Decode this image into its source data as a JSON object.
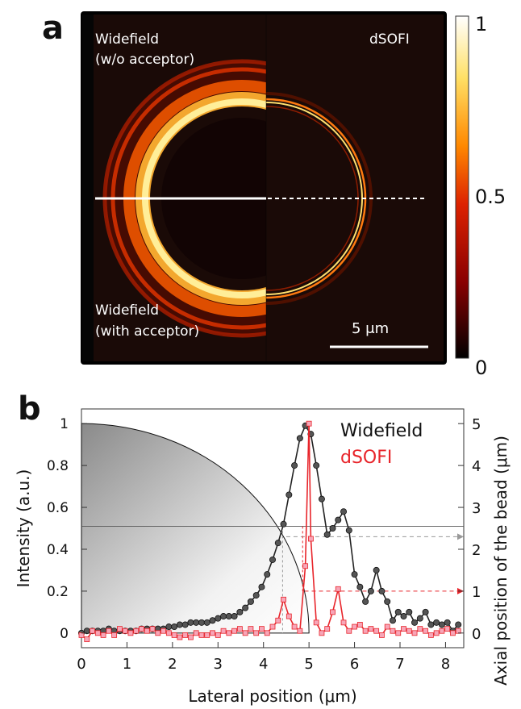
{
  "panel_a": {
    "letter": "a",
    "label_top_left_line1": "Widefield",
    "label_top_left_line2": "(w/o acceptor)",
    "label_top_right": "dSOFI",
    "label_bottom_left_line1": "Widefield",
    "label_bottom_left_line2": "(with acceptor)",
    "scalebar_label": "5 μm",
    "colorbar": {
      "ticks": [
        "1",
        "0.5",
        "0"
      ],
      "colors": [
        "#ffffff",
        "#ffe066",
        "#ff8800",
        "#dd2200",
        "#880000",
        "#000000"
      ]
    }
  },
  "panel_b": {
    "letter": "b",
    "chart_data": {
      "type": "line",
      "xlabel": "Lateral position (μm)",
      "ylabel": "Intensity (a.u.)",
      "y2label": "Axial position of the bead (μm)",
      "xlim": [
        0,
        8.4
      ],
      "ylim": [
        -0.07,
        1.07
      ],
      "y2lim": [
        -0.35,
        5.35
      ],
      "xticks": [
        "0",
        "1",
        "2",
        "3",
        "4",
        "5",
        "6",
        "7",
        "8"
      ],
      "yticks": [
        "0",
        "0.2",
        "0.4",
        "0.6",
        "0.8",
        "1"
      ],
      "y2ticks": [
        "0",
        "1",
        "2",
        "3",
        "4",
        "5"
      ],
      "legend": [
        "Widefield",
        "dSOFI"
      ],
      "legend_position": "top-right",
      "series": [
        {
          "name": "Widefield",
          "color": "#222222",
          "marker": "circle",
          "x": [
            0.0,
            0.12,
            0.24,
            0.36,
            0.48,
            0.6,
            0.72,
            0.84,
            0.96,
            1.08,
            1.2,
            1.32,
            1.44,
            1.56,
            1.68,
            1.8,
            1.92,
            2.04,
            2.16,
            2.28,
            2.4,
            2.52,
            2.64,
            2.76,
            2.88,
            3.0,
            3.12,
            3.24,
            3.36,
            3.48,
            3.6,
            3.72,
            3.84,
            3.96,
            4.08,
            4.2,
            4.32,
            4.44,
            4.56,
            4.68,
            4.8,
            4.92,
            5.04,
            5.16,
            5.28,
            5.4,
            5.52,
            5.64,
            5.76,
            5.88,
            6.0,
            6.12,
            6.24,
            6.36,
            6.48,
            6.6,
            6.72,
            6.84,
            6.96,
            7.08,
            7.2,
            7.32,
            7.44,
            7.56,
            7.68,
            7.8,
            7.92,
            8.04,
            8.16,
            8.28
          ],
          "y": [
            0.0,
            0.01,
            0.01,
            0.01,
            0.01,
            0.02,
            0.01,
            0.01,
            0.01,
            0.01,
            0.01,
            0.02,
            0.02,
            0.02,
            0.02,
            0.02,
            0.03,
            0.03,
            0.04,
            0.04,
            0.05,
            0.05,
            0.05,
            0.05,
            0.06,
            0.07,
            0.08,
            0.08,
            0.08,
            0.1,
            0.12,
            0.15,
            0.18,
            0.22,
            0.28,
            0.35,
            0.43,
            0.52,
            0.66,
            0.8,
            0.93,
            0.99,
            0.95,
            0.8,
            0.64,
            0.47,
            0.5,
            0.54,
            0.58,
            0.49,
            0.28,
            0.22,
            0.15,
            0.2,
            0.3,
            0.2,
            0.15,
            0.06,
            0.1,
            0.08,
            0.1,
            0.05,
            0.07,
            0.1,
            0.04,
            0.05,
            0.04,
            0.05,
            0.01,
            0.04
          ]
        },
        {
          "name": "dSOFI",
          "color": "#e8252b",
          "marker": "square",
          "x": [
            0.0,
            0.12,
            0.24,
            0.36,
            0.48,
            0.6,
            0.72,
            0.84,
            0.96,
            1.08,
            1.2,
            1.32,
            1.44,
            1.56,
            1.68,
            1.8,
            1.92,
            2.04,
            2.16,
            2.28,
            2.4,
            2.52,
            2.64,
            2.76,
            2.88,
            3.0,
            3.12,
            3.24,
            3.36,
            3.48,
            3.6,
            3.72,
            3.84,
            3.96,
            4.08,
            4.2,
            4.32,
            4.44,
            4.56,
            4.68,
            4.8,
            4.92,
            5.0,
            5.04,
            5.16,
            5.28,
            5.4,
            5.52,
            5.64,
            5.76,
            5.88,
            6.0,
            6.12,
            6.24,
            6.36,
            6.48,
            6.6,
            6.72,
            6.84,
            6.96,
            7.08,
            7.2,
            7.32,
            7.44,
            7.56,
            7.68,
            7.8,
            7.92,
            8.04,
            8.16,
            8.28
          ],
          "y": [
            -0.01,
            -0.03,
            0.01,
            0.0,
            -0.01,
            0.01,
            -0.01,
            0.02,
            0.01,
            0.0,
            0.01,
            0.02,
            0.01,
            0.02,
            0.0,
            0.01,
            0.0,
            -0.01,
            -0.02,
            -0.01,
            -0.02,
            0.0,
            -0.01,
            -0.01,
            0.0,
            -0.01,
            0.01,
            0.0,
            0.01,
            0.02,
            0.0,
            0.02,
            0.0,
            0.02,
            0.0,
            0.03,
            0.06,
            0.16,
            0.08,
            0.03,
            0.01,
            0.32,
            1.0,
            0.45,
            0.05,
            0.0,
            0.02,
            0.1,
            0.21,
            0.05,
            0.01,
            0.03,
            0.04,
            0.01,
            0.02,
            0.01,
            -0.01,
            0.03,
            0.01,
            0.0,
            0.02,
            0.01,
            0.0,
            0.02,
            0.01,
            -0.01,
            0.0,
            0.01,
            0.02,
            0.0,
            0.01
          ]
        }
      ]
    }
  }
}
